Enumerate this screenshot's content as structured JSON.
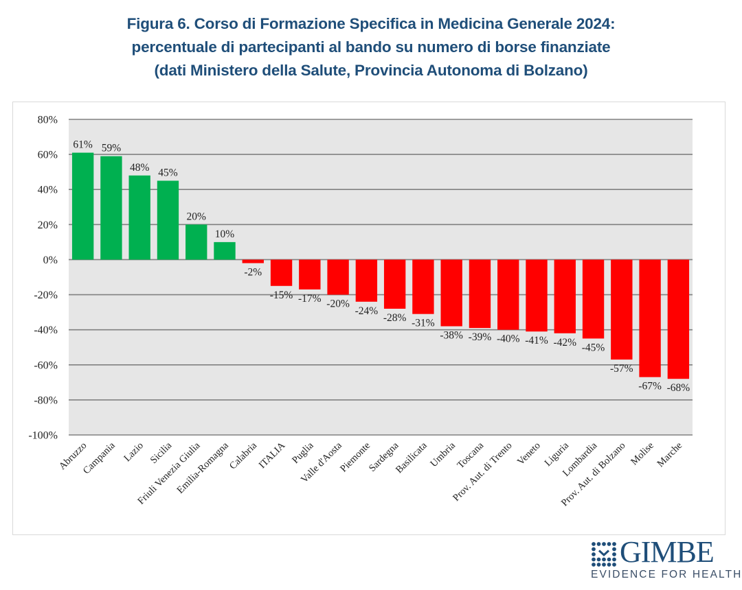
{
  "title": {
    "line1": "Figura 6. Corso di Formazione Specifica in Medicina Generale 2024:",
    "line2": "percentuale di partecipanti al bando su numero di borse finanziate",
    "line3": "(dati Ministero della Salute, Provincia Autonoma di Bolzano)"
  },
  "colors": {
    "positive": "#00b050",
    "negative": "#ff0000",
    "plot_background": "#e6e6e6",
    "gridline": "#808080",
    "title": "#1f4e79"
  },
  "chart_data": {
    "type": "bar",
    "title": "Figura 6. Corso di Formazione Specifica in Medicina Generale 2024: percentuale di partecipanti al bando su numero di borse finanziate (dati Ministero della Salute, Provincia Autonoma di Bolzano)",
    "xlabel": "",
    "ylabel": "",
    "ylim": [
      -100,
      80
    ],
    "yticks": [
      80,
      60,
      40,
      20,
      0,
      -20,
      -40,
      -60,
      -80,
      -100
    ],
    "ytick_labels": [
      "80%",
      "60%",
      "40%",
      "20%",
      "0%",
      "-20%",
      "-40%",
      "-60%",
      "-80%",
      "-100%"
    ],
    "grid": true,
    "legend": "none",
    "categories": [
      "Abruzzo",
      "Campania",
      "Lazio",
      "Sicilia",
      "Friuli Venezia Giulia",
      "Emilia-Romagna",
      "Calabria",
      "ITALIA",
      "Puglia",
      "Valle d'Aosta",
      "Piemonte",
      "Sardegna",
      "Basilicata",
      "Umbria",
      "Toscana",
      "Prov. Aut. di Trento",
      "Veneto",
      "Liguria",
      "Lombardia",
      "Prov. Aut. di Bolzano",
      "Molise",
      "Marche"
    ],
    "values": [
      61,
      59,
      48,
      45,
      20,
      10,
      -2,
      -15,
      -17,
      -20,
      -24,
      -28,
      -31,
      -38,
      -39,
      -40,
      -41,
      -42,
      -45,
      -57,
      -67,
      -68
    ],
    "data_labels": [
      "61%",
      "59%",
      "48%",
      "45%",
      "20%",
      "10%",
      "-2%",
      "-15%",
      "-17%",
      "-20%",
      "-24%",
      "-28%",
      "-31%",
      "-38%",
      "-39%",
      "-40%",
      "-41%",
      "-42%",
      "-45%",
      "-57%",
      "-67%",
      "-68%"
    ],
    "unit": "%"
  },
  "logo": {
    "name": "GIMBE",
    "tagline": "EVIDENCE FOR HEALTH",
    "icon": "grid-checkmark-icon"
  }
}
